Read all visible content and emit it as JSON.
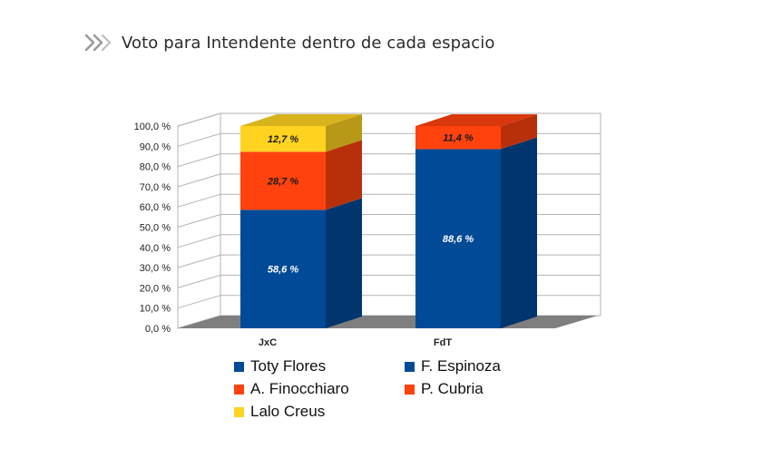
{
  "header": {
    "title": "Voto para Intendente dentro de cada espacio",
    "icon": "double-chevron-right-icon"
  },
  "colors": {
    "blue": "#004a97",
    "orange": "#ff420e",
    "yellow": "#ffd320",
    "floor": "#7f7f7f"
  },
  "legend": [
    {
      "label": "Toty Flores",
      "color": "#004a97"
    },
    {
      "label": "F. Espinoza",
      "color": "#004a97"
    },
    {
      "label": "A. Finocchiaro",
      "color": "#ff420e"
    },
    {
      "label": "P. Cubria",
      "color": "#ff420e"
    },
    {
      "label": "Lalo Creus",
      "color": "#ffd320"
    }
  ],
  "chart_data": {
    "type": "bar",
    "stacked": true,
    "three_d": true,
    "categories": [
      "JxC",
      "FdT"
    ],
    "ylim": [
      0,
      100
    ],
    "y_ticks": [
      "0,0 %",
      "10,0 %",
      "20,0 %",
      "30,0 %",
      "40,0 %",
      "50,0 %",
      "60,0 %",
      "70,0 %",
      "80,0 %",
      "90,0 %",
      "100,0 %"
    ],
    "grid": true,
    "bars": [
      {
        "category": "JxC",
        "segments": [
          {
            "name": "Toty Flores",
            "value": 58.6,
            "label": "58,6 %",
            "color": "#004a97",
            "label_color": "#ffffff"
          },
          {
            "name": "A. Finocchiaro",
            "value": 28.7,
            "label": "28,7 %",
            "color": "#ff420e",
            "label_color": "#1a1a1a"
          },
          {
            "name": "Lalo Creus",
            "value": 12.7,
            "label": "12,7 %",
            "color": "#ffd320",
            "label_color": "#1a1a1a"
          }
        ]
      },
      {
        "category": "FdT",
        "segments": [
          {
            "name": "F. Espinoza",
            "value": 88.6,
            "label": "88,6 %",
            "color": "#004a97",
            "label_color": "#ffffff"
          },
          {
            "name": "P. Cubria",
            "value": 11.4,
            "label": "11,4 %",
            "color": "#ff420e",
            "label_color": "#1a1a1a"
          }
        ]
      }
    ]
  }
}
